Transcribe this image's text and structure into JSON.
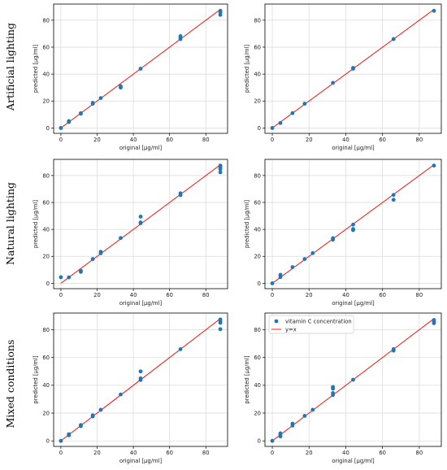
{
  "figure": {
    "row_labels": [
      "Artificial lighting",
      "Natural lighting",
      "Mixed conditions"
    ]
  },
  "colors": {
    "points": "#1f77b4",
    "line": "#ff0000",
    "grid": "#d9d9d9"
  },
  "chart_data": [
    {
      "type": "scatter",
      "row": 0,
      "col": 0,
      "xlabel": "original [µg/ml]",
      "ylabel": "predicted [µg/ml]",
      "xlim": [
        -4,
        92
      ],
      "ylim": [
        -4,
        92
      ],
      "xticks": [
        0,
        20,
        40,
        60,
        80
      ],
      "yticks": [
        0,
        20,
        40,
        60,
        80
      ],
      "grid": true,
      "legend": null,
      "series": [
        {
          "points": [
            [
              0,
              0
            ],
            [
              4.4,
              4.4
            ],
            [
              4.4,
              5.1
            ],
            [
              11,
              11
            ],
            [
              11,
              10.6
            ],
            [
              17.6,
              18
            ],
            [
              17.6,
              18.6
            ],
            [
              22,
              22.2
            ],
            [
              33,
              30
            ],
            [
              33,
              31
            ],
            [
              44,
              44
            ],
            [
              66,
              66
            ],
            [
              66,
              67.3
            ],
            [
              66,
              68.2
            ],
            [
              88,
              84
            ],
            [
              88,
              86
            ],
            [
              88,
              87
            ]
          ]
        },
        {
          "line": [
            [
              0,
              0
            ],
            [
              88,
              88
            ]
          ]
        }
      ]
    },
    {
      "type": "scatter",
      "row": 0,
      "col": 1,
      "xlabel": "original [µg/ml]",
      "ylabel": "predicted [µg/ml]",
      "xlim": [
        -4,
        92
      ],
      "ylim": [
        -4,
        92
      ],
      "xticks": [
        0,
        20,
        40,
        60,
        80
      ],
      "yticks": [
        0,
        20,
        40,
        60,
        80
      ],
      "grid": true,
      "legend": null,
      "series": [
        {
          "points": [
            [
              0,
              0
            ],
            [
              4.4,
              3.7
            ],
            [
              11,
              11
            ],
            [
              17.6,
              18
            ],
            [
              33,
              33.5
            ],
            [
              44,
              44
            ],
            [
              44,
              44.6
            ],
            [
              66,
              66
            ],
            [
              88,
              87
            ]
          ]
        },
        {
          "line": [
            [
              0,
              0
            ],
            [
              88,
              88
            ]
          ]
        }
      ]
    },
    {
      "type": "scatter",
      "row": 1,
      "col": 0,
      "xlabel": "original [µg/ml]",
      "ylabel": "predicted [µg/ml]",
      "xlim": [
        -4,
        92
      ],
      "ylim": [
        -4,
        92
      ],
      "xticks": [
        0,
        20,
        40,
        60,
        80
      ],
      "yticks": [
        0,
        20,
        40,
        60,
        80
      ],
      "grid": true,
      "legend": null,
      "series": [
        {
          "points": [
            [
              0,
              4.5
            ],
            [
              4.4,
              4.4
            ],
            [
              11,
              8.5
            ],
            [
              11,
              9.3
            ],
            [
              17.6,
              18
            ],
            [
              22,
              22.3
            ],
            [
              22,
              23.4
            ],
            [
              33,
              33.6
            ],
            [
              44,
              44.6
            ],
            [
              44,
              45.2
            ],
            [
              44,
              49.5
            ],
            [
              66,
              65.5
            ],
            [
              66,
              66.8
            ],
            [
              88,
              82.4
            ],
            [
              88,
              84.8
            ],
            [
              88,
              86.2
            ],
            [
              88,
              87.4
            ]
          ]
        },
        {
          "line": [
            [
              0,
              0
            ],
            [
              88,
              88
            ]
          ]
        }
      ]
    },
    {
      "type": "scatter",
      "row": 1,
      "col": 1,
      "xlabel": "original [µg/ml]",
      "ylabel": "predicted [µg/ml]",
      "xlim": [
        -4,
        92
      ],
      "ylim": [
        -4,
        92
      ],
      "xticks": [
        0,
        20,
        40,
        60,
        80
      ],
      "yticks": [
        0,
        20,
        40,
        60,
        80
      ],
      "grid": true,
      "legend": null,
      "series": [
        {
          "points": [
            [
              0,
              0
            ],
            [
              4.4,
              4.6
            ],
            [
              4.4,
              6.3
            ],
            [
              11,
              12
            ],
            [
              17.6,
              18
            ],
            [
              22,
              22.4
            ],
            [
              33,
              32.4
            ],
            [
              33,
              33.5
            ],
            [
              44,
              39.5
            ],
            [
              44,
              40.3
            ],
            [
              44,
              43.6
            ],
            [
              66,
              62
            ],
            [
              66,
              65.6
            ],
            [
              88,
              87.4
            ]
          ]
        },
        {
          "line": [
            [
              0,
              0
            ],
            [
              88,
              88
            ]
          ]
        }
      ]
    },
    {
      "type": "scatter",
      "row": 2,
      "col": 0,
      "xlabel": "original [µg/ml]",
      "ylabel": "predicted [µg/ml]",
      "xlim": [
        -4,
        92
      ],
      "ylim": [
        -4,
        92
      ],
      "xticks": [
        0,
        20,
        40,
        60,
        80
      ],
      "yticks": [
        0,
        20,
        40,
        60,
        80
      ],
      "grid": true,
      "legend": null,
      "series": [
        {
          "points": [
            [
              0,
              0
            ],
            [
              4.4,
              4
            ],
            [
              4.4,
              4.8
            ],
            [
              11,
              10.6
            ],
            [
              11,
              11.4
            ],
            [
              17.6,
              17.6
            ],
            [
              17.6,
              18.4
            ],
            [
              22,
              22.4
            ],
            [
              33,
              33.4
            ],
            [
              44,
              43.8
            ],
            [
              44,
              45
            ],
            [
              44,
              50
            ],
            [
              66,
              66
            ],
            [
              88,
              80.4
            ],
            [
              88,
              85
            ],
            [
              88,
              86.3
            ],
            [
              88,
              87.4
            ]
          ]
        },
        {
          "line": [
            [
              0,
              0
            ],
            [
              88,
              88
            ]
          ]
        }
      ]
    },
    {
      "type": "scatter",
      "row": 2,
      "col": 1,
      "xlabel": "original [µg/ml]",
      "ylabel": "predicted [µg/ml]",
      "xlim": [
        -4,
        92
      ],
      "ylim": [
        -4,
        92
      ],
      "xticks": [
        0,
        20,
        40,
        60,
        80
      ],
      "yticks": [
        0,
        20,
        40,
        60,
        80
      ],
      "grid": true,
      "legend": "upper left",
      "series": [
        {
          "name": "vitamin C concentration",
          "points": [
            [
              0,
              0
            ],
            [
              4.4,
              3.2
            ],
            [
              4.4,
              4.5
            ],
            [
              4.4,
              5.4
            ],
            [
              11,
              11
            ],
            [
              11,
              12.4
            ],
            [
              17.6,
              18
            ],
            [
              22,
              22.4
            ],
            [
              33,
              33
            ],
            [
              33,
              34.4
            ],
            [
              33,
              37.6
            ],
            [
              33,
              38.8
            ],
            [
              44,
              44
            ],
            [
              66,
              65
            ],
            [
              66,
              66
            ],
            [
              88,
              84.7
            ],
            [
              88,
              85.8
            ],
            [
              88,
              87
            ]
          ]
        },
        {
          "name": "y=x",
          "line": [
            [
              0,
              0
            ],
            [
              88,
              88
            ]
          ]
        }
      ]
    }
  ]
}
